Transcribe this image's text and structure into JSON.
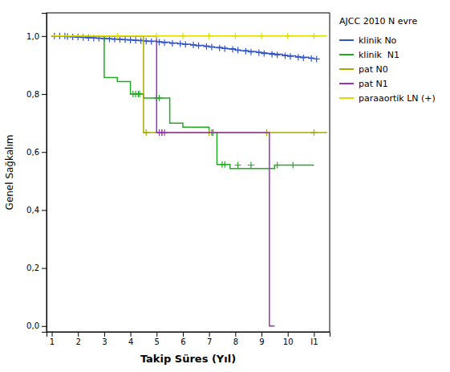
{
  "chart_data": {
    "type": "step",
    "title": "AJCC 2010 N evre",
    "x_label": "Takip Süres (Yıl)",
    "y_label": "Genel Sağkalım",
    "xlim": [
      0.8,
      11.6
    ],
    "ylim": [
      -0.02,
      1.08
    ],
    "xticks": [
      1,
      2,
      3,
      4,
      5,
      6,
      7,
      8,
      9,
      10,
      {
        "value": 11,
        "label": "I1"
      }
    ],
    "yticks": [
      {
        "value": 0.0,
        "label": "0,0"
      },
      {
        "value": 0.2,
        "label": "0,2"
      },
      {
        "value": 0.4,
        "label": "0,4"
      },
      {
        "value": 0.6,
        "label": "0,6"
      },
      {
        "value": 0.8,
        "label": "0,8"
      },
      {
        "value": 1.0,
        "label": "1,0"
      }
    ],
    "grid": false,
    "legend": "right",
    "series": [
      {
        "name": "klinik No",
        "color": "#3355cc",
        "marker": "plus",
        "x": [
          1.0,
          1.5,
          1.7,
          1.9,
          2.1,
          2.3,
          2.5,
          2.7,
          2.9,
          3.1,
          3.3,
          3.5,
          3.7,
          3.9,
          4.1,
          4.3,
          4.5,
          4.7,
          5.0,
          5.2,
          5.5,
          5.8,
          6.0,
          6.3,
          6.5,
          6.8,
          7.0,
          7.2,
          7.5,
          7.7,
          8.0,
          8.2,
          8.5,
          8.8,
          9.0,
          9.2,
          9.5,
          9.8,
          10.0,
          10.3,
          10.5,
          10.8,
          11.0
        ],
        "values": [
          1.0,
          1.0,
          0.998,
          0.997,
          0.996,
          0.995,
          0.994,
          0.993,
          0.992,
          0.991,
          0.99,
          0.989,
          0.988,
          0.987,
          0.986,
          0.985,
          0.983,
          0.982,
          0.98,
          0.979,
          0.976,
          0.974,
          0.972,
          0.97,
          0.968,
          0.966,
          0.963,
          0.961,
          0.958,
          0.956,
          0.952,
          0.95,
          0.947,
          0.944,
          0.942,
          0.94,
          0.937,
          0.934,
          0.932,
          0.929,
          0.927,
          0.924,
          0.922
        ],
        "censors_x": [
          1.1,
          1.3,
          1.5,
          1.6,
          1.8,
          2.0,
          2.2,
          2.4,
          2.6,
          2.8,
          3.0,
          3.2,
          3.4,
          3.6,
          3.8,
          4.0,
          4.2,
          4.4,
          4.6,
          4.8,
          5.1,
          5.3,
          5.6,
          5.9,
          6.1,
          6.4,
          6.6,
          6.9,
          7.1,
          7.4,
          7.6,
          7.9,
          8.1,
          8.4,
          8.6,
          8.9,
          9.1,
          9.4,
          9.6,
          9.9,
          10.1,
          10.4,
          10.6,
          10.9,
          11.1
        ],
        "censors_y": [
          1.0,
          1.0,
          1.0,
          0.998,
          0.997,
          0.996,
          0.995,
          0.994,
          0.993,
          0.992,
          0.991,
          0.99,
          0.989,
          0.988,
          0.987,
          0.986,
          0.985,
          0.984,
          0.982,
          0.981,
          0.979,
          0.977,
          0.975,
          0.973,
          0.971,
          0.969,
          0.967,
          0.964,
          0.962,
          0.959,
          0.957,
          0.954,
          0.951,
          0.948,
          0.945,
          0.943,
          0.94,
          0.937,
          0.935,
          0.932,
          0.93,
          0.927,
          0.925,
          0.923,
          0.921
        ]
      },
      {
        "name": "klinik  N1",
        "color": "#22aa22",
        "marker": "plus",
        "x": [
          1.0,
          3.0,
          3.5,
          4.0,
          4.5,
          5.5,
          6.0,
          7.0,
          7.3,
          7.8,
          9.5,
          11.0
        ],
        "values": [
          1.0,
          0.857,
          0.843,
          0.8,
          0.786,
          0.7,
          0.686,
          0.667,
          0.557,
          0.543,
          0.555,
          0.555
        ],
        "censors_x": [
          4.1,
          4.2,
          4.3,
          4.35,
          5.0,
          5.1,
          7.1,
          7.15,
          7.5,
          7.6,
          8.1,
          8.6,
          9.6,
          10.2
        ],
        "censors_y": [
          0.8,
          0.8,
          0.8,
          0.8,
          0.786,
          0.786,
          0.667,
          0.667,
          0.557,
          0.557,
          0.555,
          0.555,
          0.555,
          0.555
        ]
      },
      {
        "name": "pat N0",
        "color": "#aaaa00",
        "marker": "plus",
        "x": [
          1.0,
          4.5,
          11.5
        ],
        "values": [
          1.0,
          0.667,
          0.667
        ],
        "censors_x": [
          4.6,
          5.2,
          7.0,
          9.2,
          11.0
        ],
        "censors_y": [
          0.667,
          0.667,
          0.667,
          0.667,
          0.667
        ]
      },
      {
        "name": "pat N1",
        "color": "#9933bb",
        "marker": "plus",
        "x": [
          1.0,
          5.0,
          9.3,
          9.3,
          9.5
        ],
        "values": [
          1.0,
          0.667,
          0.667,
          0.0,
          0.0
        ],
        "censors_x": [
          5.1,
          5.2,
          5.3
        ],
        "censors_y": [
          0.667,
          0.667,
          0.667
        ]
      },
      {
        "name": "paraaortik LN (+)",
        "color": "#dddd00",
        "marker": "plus",
        "x": [
          1.0,
          11.5
        ],
        "values": [
          1.0,
          1.0
        ],
        "censors_x": [
          3.5,
          5.0,
          6.0,
          7.0,
          8.0,
          9.0,
          10.0,
          11.0
        ],
        "censors_y": [
          1.0,
          1.0,
          1.0,
          1.0,
          1.0,
          1.0,
          1.0,
          1.0
        ]
      }
    ]
  }
}
